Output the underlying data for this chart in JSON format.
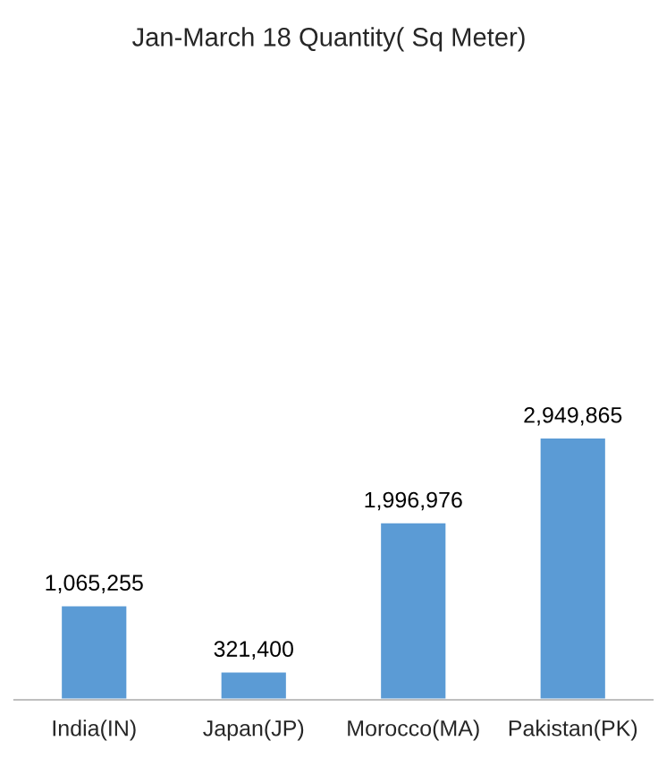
{
  "chart_data": {
    "type": "bar",
    "title": "Jan-March 18 Quantity( Sq Meter)",
    "categories": [
      "India(IN)",
      "Japan(JP)",
      "Morocco(MA)",
      "Pakistan(PK)"
    ],
    "values": [
      1065255,
      321400,
      1996976,
      2949865
    ],
    "value_labels": [
      "1,065,255",
      "321,400",
      "1,996,976",
      "2,949,865"
    ],
    "color": "#5b9bd5",
    "grid": false,
    "legend": false
  }
}
